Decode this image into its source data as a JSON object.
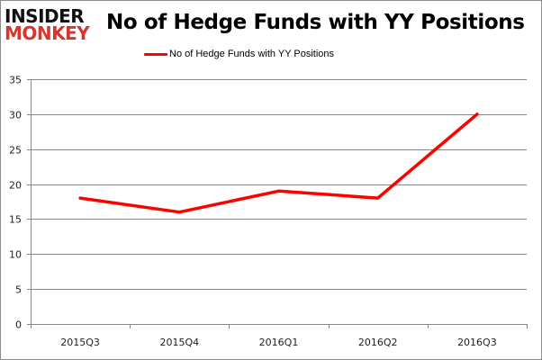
{
  "logo": {
    "line1": "INSIDER",
    "line2": "MONKEY"
  },
  "title": "No of Hedge Funds with YY Positions",
  "legend": {
    "label": "No of Hedge Funds with YY Positions",
    "color": "#ff0000"
  },
  "chart_data": {
    "type": "line",
    "title": "No of Hedge Funds with YY Positions",
    "categories": [
      "2015Q3",
      "2015Q4",
      "2016Q1",
      "2016Q2",
      "2016Q3"
    ],
    "series": [
      {
        "name": "No of Hedge Funds with YY Positions",
        "values": [
          18,
          16,
          19,
          18,
          30
        ],
        "color": "#ff0000"
      }
    ],
    "xlabel": "",
    "ylabel": "",
    "ylim": [
      0,
      35
    ],
    "yticks": [
      0,
      5,
      10,
      15,
      20,
      25,
      30,
      35
    ],
    "grid": true,
    "legend_position": "top"
  }
}
